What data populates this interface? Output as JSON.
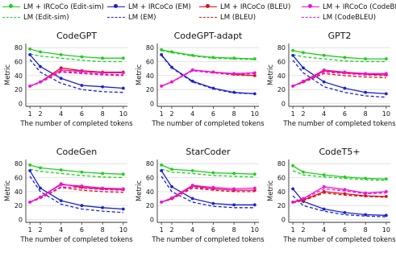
{
  "legend": [
    {
      "label": "LM + IRCoCo (Edit-sim)",
      "color": "#22cc22",
      "style": "solid",
      "marker": true
    },
    {
      "label": "LM (Edit-sim)",
      "color": "#22cc22",
      "style": "dashed",
      "marker": false
    },
    {
      "label": "LM + IRCoCo (EM)",
      "color": "#1a22cc",
      "style": "solid",
      "marker": true
    },
    {
      "label": "LM (EM)",
      "color": "#1a22cc",
      "style": "dashed",
      "marker": false
    },
    {
      "label": "LM + IRCoCo (BLEU)",
      "color": "#dd1111",
      "style": "solid",
      "marker": true
    },
    {
      "label": "LM (BLEU)",
      "color": "#dd1111",
      "style": "dashed",
      "marker": false
    },
    {
      "label": "LM + IRCoCo (CodeBLEU)",
      "color": "#ee11dd",
      "style": "solid",
      "marker": true
    },
    {
      "label": "LM (CodeBLEU)",
      "color": "#ee11dd",
      "style": "dashed",
      "marker": false
    }
  ],
  "chart_data": [
    {
      "type": "line",
      "title": "CodeGPT",
      "xlabel": "The number of completed tokens",
      "ylabel": "Metric",
      "x": [
        1,
        2,
        4,
        6,
        8,
        10
      ],
      "xticks": [
        "1",
        "2",
        "4",
        "6",
        "8",
        "10"
      ],
      "ylim": [
        0,
        80
      ],
      "yticks": [
        "0",
        "20",
        "40",
        "60",
        "80"
      ],
      "series": [
        {
          "name": "LM + IRCoCo (Edit-sim)",
          "color": "#22cc22",
          "style": "solid",
          "marker": true,
          "values": [
            78,
            74,
            70,
            67,
            65,
            65
          ]
        },
        {
          "name": "LM (Edit-sim)",
          "color": "#22cc22",
          "style": "dashed",
          "marker": false,
          "values": [
            71,
            68,
            65,
            62,
            60,
            60
          ]
        },
        {
          "name": "LM + IRCoCo (EM)",
          "color": "#1a22cc",
          "style": "solid",
          "marker": true,
          "values": [
            70,
            53,
            36,
            26,
            24,
            22
          ]
        },
        {
          "name": "LM (EM)",
          "color": "#1a22cc",
          "style": "dashed",
          "marker": false,
          "values": [
            63,
            45,
            29,
            20,
            17,
            16
          ]
        },
        {
          "name": "LM + IRCoCo (BLEU)",
          "color": "#dd1111",
          "style": "solid",
          "marker": true,
          "values": [
            25,
            31,
            51,
            47,
            45,
            45
          ]
        },
        {
          "name": "LM (BLEU)",
          "color": "#dd1111",
          "style": "dashed",
          "marker": false,
          "values": [
            25,
            30,
            46,
            44,
            42,
            41
          ]
        },
        {
          "name": "LM + IRCoCo (CodeBLEU)",
          "color": "#ee11dd",
          "style": "solid",
          "marker": true,
          "values": [
            25,
            31,
            48,
            46,
            44,
            44
          ]
        },
        {
          "name": "LM (CodeBLEU)",
          "color": "#ee11dd",
          "style": "dashed",
          "marker": false,
          "values": [
            25,
            30,
            45,
            43,
            41,
            40
          ]
        }
      ]
    },
    {
      "type": "line",
      "title": "CodeGPT-adapt",
      "xlabel": "The number of completed tokens",
      "ylabel": "Metric",
      "x": [
        1,
        2,
        4,
        6,
        8,
        10
      ],
      "xticks": [
        "1",
        "2",
        "4",
        "6",
        "8",
        "10"
      ],
      "ylim": [
        0,
        80
      ],
      "yticks": [
        "0",
        "20",
        "40",
        "60",
        "80"
      ],
      "series": [
        {
          "name": "LM + IRCoCo (Edit-sim)",
          "color": "#22cc22",
          "style": "solid",
          "marker": true,
          "values": [
            77,
            74,
            69,
            66,
            65,
            64
          ]
        },
        {
          "name": "LM (Edit-sim)",
          "color": "#22cc22",
          "style": "dashed",
          "marker": false,
          "values": [
            76,
            73,
            68,
            65,
            64,
            63
          ]
        },
        {
          "name": "LM + IRCoCo (EM)",
          "color": "#1a22cc",
          "style": "solid",
          "marker": true,
          "values": [
            70,
            52,
            32,
            22,
            16,
            14
          ]
        },
        {
          "name": "LM (EM)",
          "color": "#1a22cc",
          "style": "dashed",
          "marker": false,
          "values": [
            69,
            51,
            31,
            21,
            15,
            14
          ]
        },
        {
          "name": "LM + IRCoCo (BLEU)",
          "color": "#dd1111",
          "style": "solid",
          "marker": true,
          "values": [
            25,
            31,
            48,
            45,
            42,
            40
          ]
        },
        {
          "name": "LM (BLEU)",
          "color": "#dd1111",
          "style": "dashed",
          "marker": false,
          "values": [
            25,
            31,
            47,
            44,
            41,
            40
          ]
        },
        {
          "name": "LM + IRCoCo (CodeBLEU)",
          "color": "#ee11dd",
          "style": "solid",
          "marker": true,
          "values": [
            25,
            31,
            48,
            45,
            43,
            44
          ]
        },
        {
          "name": "LM (CodeBLEU)",
          "color": "#ee11dd",
          "style": "dashed",
          "marker": false,
          "values": [
            25,
            31,
            47,
            44,
            42,
            43
          ]
        }
      ]
    },
    {
      "type": "line",
      "title": "GPT2",
      "xlabel": "The number of completed tokens",
      "ylabel": "Metric",
      "x": [
        1,
        2,
        4,
        6,
        8,
        10
      ],
      "xticks": [
        "1",
        "2",
        "4",
        "6",
        "8",
        "10"
      ],
      "ylim": [
        0,
        80
      ],
      "yticks": [
        "0",
        "20",
        "40",
        "60",
        "80"
      ],
      "series": [
        {
          "name": "LM + IRCoCo (Edit-sim)",
          "color": "#22cc22",
          "style": "solid",
          "marker": true,
          "values": [
            76,
            73,
            69,
            66,
            64,
            64
          ]
        },
        {
          "name": "LM (Edit-sim)",
          "color": "#22cc22",
          "style": "dashed",
          "marker": false,
          "values": [
            70,
            67,
            64,
            61,
            60,
            60
          ]
        },
        {
          "name": "LM + IRCoCo (EM)",
          "color": "#1a22cc",
          "style": "solid",
          "marker": true,
          "values": [
            69,
            51,
            31,
            22,
            16,
            14
          ]
        },
        {
          "name": "LM (EM)",
          "color": "#1a22cc",
          "style": "dashed",
          "marker": false,
          "values": [
            62,
            44,
            24,
            16,
            11,
            9
          ]
        },
        {
          "name": "LM + IRCoCo (BLEU)",
          "color": "#dd1111",
          "style": "solid",
          "marker": true,
          "values": [
            25,
            31,
            47,
            44,
            42,
            41
          ]
        },
        {
          "name": "LM (BLEU)",
          "color": "#dd1111",
          "style": "dashed",
          "marker": false,
          "values": [
            25,
            30,
            43,
            40,
            38,
            37
          ]
        },
        {
          "name": "LM + IRCoCo (CodeBLEU)",
          "color": "#ee11dd",
          "style": "solid",
          "marker": true,
          "values": [
            25,
            32,
            48,
            45,
            43,
            43
          ]
        },
        {
          "name": "LM (CodeBLEU)",
          "color": "#ee11dd",
          "style": "dashed",
          "marker": false,
          "values": [
            25,
            31,
            45,
            43,
            41,
            40
          ]
        }
      ]
    },
    {
      "type": "line",
      "title": "CodeGen",
      "xlabel": "The number of completed tokens",
      "ylabel": "Metric",
      "x": [
        1,
        2,
        4,
        6,
        8,
        10
      ],
      "xticks": [
        "1",
        "2",
        "4",
        "6",
        "8",
        "10"
      ],
      "ylim": [
        0,
        80
      ],
      "yticks": [
        "0",
        "20",
        "40",
        "60",
        "80"
      ],
      "series": [
        {
          "name": "LM + IRCoCo (Edit-sim)",
          "color": "#22cc22",
          "style": "solid",
          "marker": true,
          "values": [
            78,
            74,
            71,
            68,
            66,
            65
          ]
        },
        {
          "name": "LM (Edit-sim)",
          "color": "#22cc22",
          "style": "dashed",
          "marker": false,
          "values": [
            72,
            69,
            66,
            63,
            61,
            60
          ]
        },
        {
          "name": "LM + IRCoCo (EM)",
          "color": "#1a22cc",
          "style": "solid",
          "marker": true,
          "values": [
            70,
            45,
            27,
            20,
            17,
            15
          ]
        },
        {
          "name": "LM (EM)",
          "color": "#1a22cc",
          "style": "dashed",
          "marker": false,
          "values": [
            62,
            40,
            22,
            15,
            12,
            10
          ]
        },
        {
          "name": "LM + IRCoCo (BLEU)",
          "color": "#dd1111",
          "style": "solid",
          "marker": true,
          "values": [
            25,
            32,
            51,
            46,
            44,
            43
          ]
        },
        {
          "name": "LM (BLEU)",
          "color": "#dd1111",
          "style": "dashed",
          "marker": false,
          "values": [
            25,
            30,
            46,
            42,
            40,
            39
          ]
        },
        {
          "name": "LM + IRCoCo (CodeBLEU)",
          "color": "#ee11dd",
          "style": "solid",
          "marker": true,
          "values": [
            25,
            32,
            50,
            48,
            45,
            44
          ]
        },
        {
          "name": "LM (CodeBLEU)",
          "color": "#ee11dd",
          "style": "dashed",
          "marker": false,
          "values": [
            25,
            31,
            47,
            45,
            43,
            42
          ]
        }
      ]
    },
    {
      "type": "line",
      "title": "StarCoder",
      "xlabel": "The number of completed tokens",
      "ylabel": "Metric",
      "x": [
        1,
        2,
        4,
        6,
        8,
        10
      ],
      "xticks": [
        "1",
        "2",
        "4",
        "6",
        "8",
        "10"
      ],
      "ylim": [
        0,
        80
      ],
      "yticks": [
        "0",
        "20",
        "40",
        "60",
        "80"
      ],
      "series": [
        {
          "name": "LM + IRCoCo (Edit-sim)",
          "color": "#22cc22",
          "style": "solid",
          "marker": true,
          "values": [
            78,
            72,
            70,
            67,
            66,
            65
          ]
        },
        {
          "name": "LM (Edit-sim)",
          "color": "#22cc22",
          "style": "dashed",
          "marker": false,
          "values": [
            72,
            68,
            66,
            63,
            62,
            61
          ]
        },
        {
          "name": "LM + IRCoCo (EM)",
          "color": "#1a22cc",
          "style": "solid",
          "marker": true,
          "values": [
            70,
            47,
            30,
            23,
            21,
            21
          ]
        },
        {
          "name": "LM (EM)",
          "color": "#1a22cc",
          "style": "dashed",
          "marker": false,
          "values": [
            62,
            40,
            25,
            19,
            17,
            17
          ]
        },
        {
          "name": "LM + IRCoCo (BLEU)",
          "color": "#dd1111",
          "style": "solid",
          "marker": true,
          "values": [
            25,
            30,
            48,
            44,
            42,
            42
          ]
        },
        {
          "name": "LM (BLEU)",
          "color": "#dd1111",
          "style": "dashed",
          "marker": false,
          "values": [
            25,
            29,
            45,
            42,
            40,
            40
          ]
        },
        {
          "name": "LM + IRCoCo (CodeBLEU)",
          "color": "#ee11dd",
          "style": "solid",
          "marker": true,
          "values": [
            25,
            31,
            49,
            46,
            44,
            45
          ]
        },
        {
          "name": "LM (CodeBLEU)",
          "color": "#ee11dd",
          "style": "dashed",
          "marker": false,
          "values": [
            25,
            30,
            46,
            44,
            42,
            42
          ]
        }
      ]
    },
    {
      "type": "line",
      "title": "CodeT5+",
      "xlabel": "The number of completed tokens",
      "ylabel": "Metric",
      "x": [
        1,
        2,
        4,
        6,
        8,
        10
      ],
      "xticks": [
        "1",
        "2",
        "4",
        "6",
        "8",
        "10"
      ],
      "ylim": [
        0,
        80
      ],
      "yticks": [
        "0",
        "20",
        "40",
        "60",
        "80"
      ],
      "series": [
        {
          "name": "LM + IRCoCo (Edit-sim)",
          "color": "#22cc22",
          "style": "solid",
          "marker": true,
          "values": [
            77,
            68,
            64,
            61,
            59,
            58
          ]
        },
        {
          "name": "LM (Edit-sim)",
          "color": "#22cc22",
          "style": "dashed",
          "marker": false,
          "values": [
            70,
            64,
            61,
            59,
            57,
            56
          ]
        },
        {
          "name": "LM + IRCoCo (EM)",
          "color": "#1a22cc",
          "style": "solid",
          "marker": true,
          "values": [
            44,
            26,
            15,
            10,
            7,
            6
          ]
        },
        {
          "name": "LM (EM)",
          "color": "#1a22cc",
          "style": "dashed",
          "marker": false,
          "values": [
            34,
            20,
            12,
            7,
            5,
            4
          ]
        },
        {
          "name": "LM + IRCoCo (BLEU)",
          "color": "#dd1111",
          "style": "solid",
          "marker": true,
          "values": [
            25,
            28,
            40,
            37,
            34,
            33
          ]
        },
        {
          "name": "LM (BLEU)",
          "color": "#dd1111",
          "style": "dashed",
          "marker": false,
          "values": [
            24,
            27,
            38,
            35,
            33,
            32
          ]
        },
        {
          "name": "LM + IRCoCo (CodeBLEU)",
          "color": "#ee11dd",
          "style": "solid",
          "marker": true,
          "values": [
            25,
            30,
            47,
            43,
            38,
            40
          ]
        },
        {
          "name": "LM (CodeBLEU)",
          "color": "#ee11dd",
          "style": "dashed",
          "marker": false,
          "values": [
            25,
            29,
            44,
            41,
            37,
            38
          ]
        }
      ]
    }
  ]
}
